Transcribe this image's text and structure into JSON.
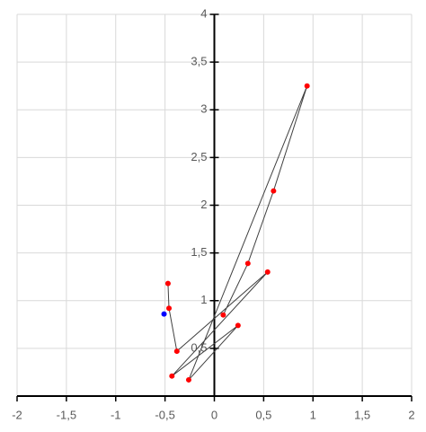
{
  "chart_data": {
    "type": "scatter",
    "xlim": [
      -2,
      2
    ],
    "ylim": [
      0,
      4
    ],
    "grid": true,
    "xticks": [
      -2,
      {
        "value": -1.5,
        "label": "-1,5"
      },
      -1,
      {
        "value": -0.5,
        "label": "-0,5"
      },
      0,
      {
        "value": 0.5,
        "label": "0,5"
      },
      1,
      {
        "value": 1.5,
        "label": "1,5"
      },
      2
    ],
    "yticks": [
      {
        "value": 0.5,
        "label": "0,5"
      },
      1,
      {
        "value": 1.5,
        "label": "1,5"
      },
      2,
      {
        "value": 2.5,
        "label": "2,5"
      },
      3,
      {
        "value": 3.5,
        "label": "3,5"
      },
      4
    ],
    "series": [
      {
        "color": "#0000ff",
        "line": false,
        "x": [
          -0.51
        ],
        "values": [
          0.86
        ]
      },
      {
        "color": "#ff0000",
        "line": true,
        "line_color": "#404040",
        "x": [
          -0.47,
          -0.46,
          -0.38,
          0.54,
          -0.43,
          0.24,
          -0.26,
          0.94,
          0.6,
          0.34,
          0.09
        ],
        "values": [
          1.18,
          0.92,
          0.47,
          1.3,
          0.21,
          0.74,
          0.17,
          3.25,
          2.15,
          1.39,
          0.85
        ]
      }
    ]
  }
}
